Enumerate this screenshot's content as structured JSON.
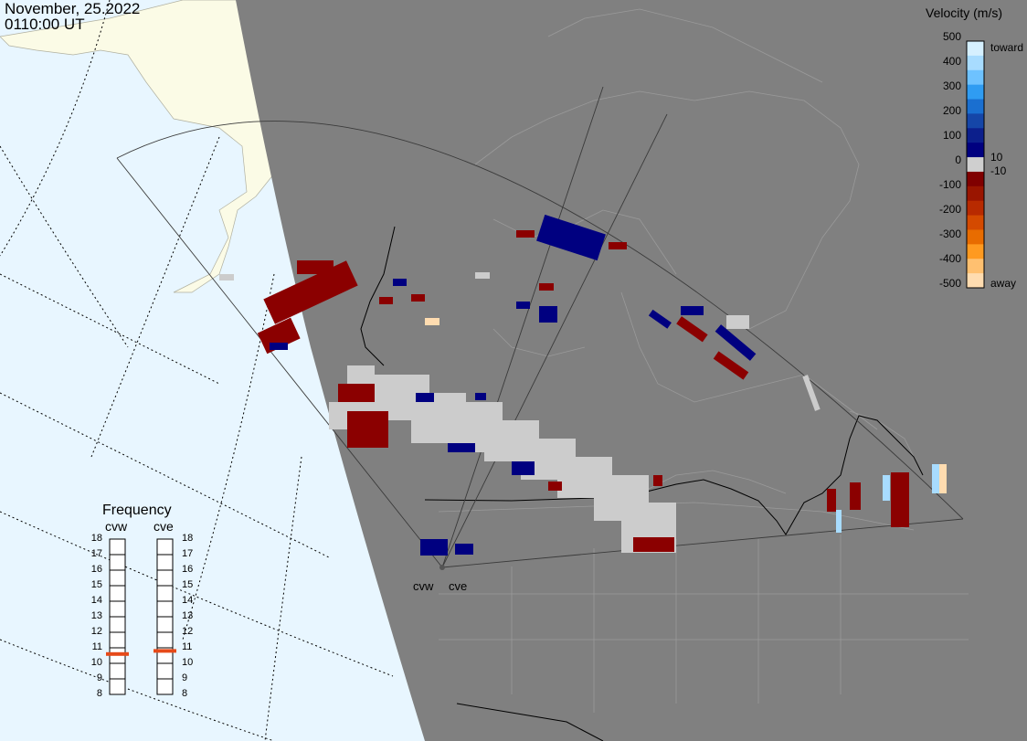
{
  "header": {
    "date": "November, 25.2022",
    "time": "0110:00 UT"
  },
  "velocity_legend": {
    "title": "Velocity (m/s)",
    "ticks": [
      "500",
      "400",
      "300",
      "200",
      "100",
      "0",
      "-100",
      "-200",
      "-300",
      "-400",
      "-500"
    ],
    "toward_label": "toward",
    "away_label": "away",
    "gap_upper": "10",
    "gap_lower": "-10",
    "colors": [
      "#d6f0ff",
      "#a8dcff",
      "#6ec2ff",
      "#2f9cf2",
      "#1a6fd0",
      "#1546a8",
      "#0c1f8c",
      "#000080",
      "#cfcfcf",
      "#800000",
      "#9a1500",
      "#b82a00",
      "#d44a00",
      "#e86c00",
      "#ff9a20",
      "#ffc070",
      "#ffdcb0"
    ]
  },
  "frequency": {
    "title": "Frequency",
    "radars": [
      "cvw",
      "cve"
    ],
    "scale": [
      "18",
      "17",
      "16",
      "15",
      "14",
      "13",
      "12",
      "11",
      "10",
      "9",
      "8"
    ],
    "cvw_value_mhz": 10.6,
    "cve_value_mhz": 10.8,
    "marker_color": "#e64a19"
  },
  "radar_labels": [
    "cvw",
    "cve"
  ],
  "colors": {
    "ocean": "#e8f6ff",
    "land_day": "#fbfbe6",
    "night": "#808080",
    "borders": "#000000",
    "state_lines": "#9a9a9a"
  }
}
